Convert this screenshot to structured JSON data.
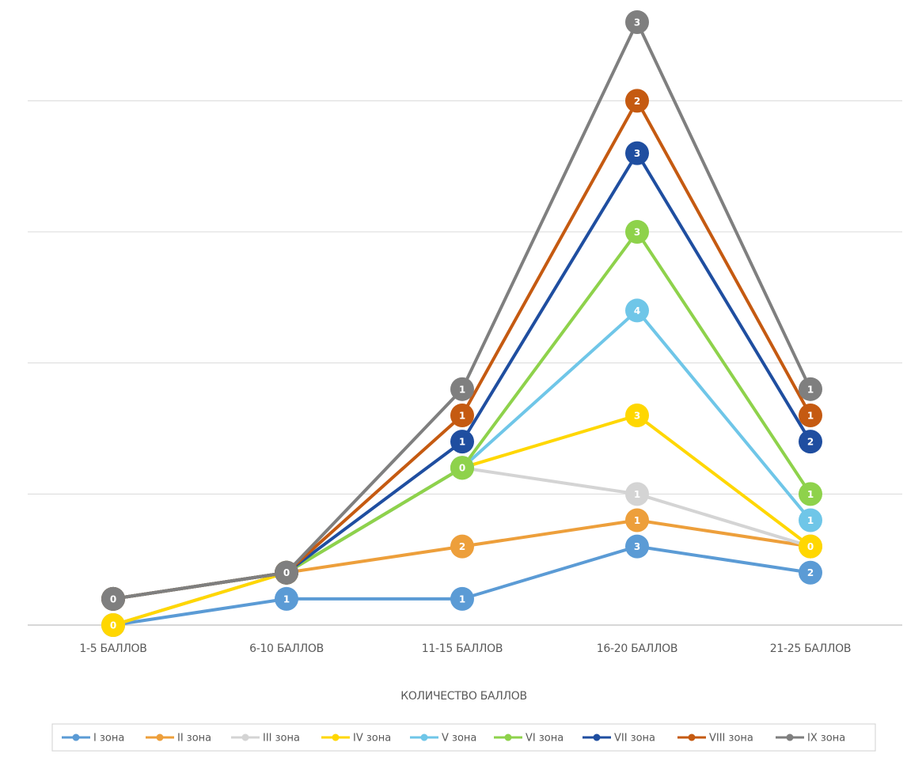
{
  "chart_data": {
    "type": "line",
    "stacked": true,
    "categories": [
      "1-5 БАЛЛОВ",
      "6-10 БАЛЛОВ",
      "11-15 БАЛЛОВ",
      "16-20 БАЛЛОВ",
      "21-25 БАЛЛОВ"
    ],
    "xlabel": "КОЛИЧЕСТВО БАЛЛОВ",
    "ylabel": "",
    "title": "",
    "ylim": [
      0,
      23
    ],
    "grid": true,
    "legend_position": "bottom",
    "series": [
      {
        "name": "I зона",
        "color": "#5b9bd5",
        "values": [
          0,
          1,
          1,
          3,
          2
        ]
      },
      {
        "name": "II зона",
        "color": "#ed9f3b",
        "values": [
          0,
          1,
          2,
          1,
          1
        ]
      },
      {
        "name": "III зона",
        "color": "#d4d4d4",
        "values": [
          0,
          0,
          3,
          1,
          0
        ]
      },
      {
        "name": "IV зона",
        "color": "#ffd700",
        "values": [
          0,
          0,
          0,
          3,
          0
        ]
      },
      {
        "name": "V зона",
        "color": "#6fc6e8",
        "values": [
          1,
          0,
          0,
          4,
          1
        ]
      },
      {
        "name": "VI зона",
        "color": "#8ed24b",
        "values": [
          0,
          0,
          0,
          3,
          1
        ]
      },
      {
        "name": "VII зона",
        "color": "#1f4ea0",
        "values": [
          0,
          0,
          1,
          3,
          2
        ]
      },
      {
        "name": "VIII зона",
        "color": "#c55a11",
        "values": [
          0,
          0,
          1,
          2,
          1
        ]
      },
      {
        "name": "IX зона",
        "color": "#7f7f7f",
        "values": [
          0,
          0,
          1,
          3,
          1
        ]
      }
    ]
  }
}
